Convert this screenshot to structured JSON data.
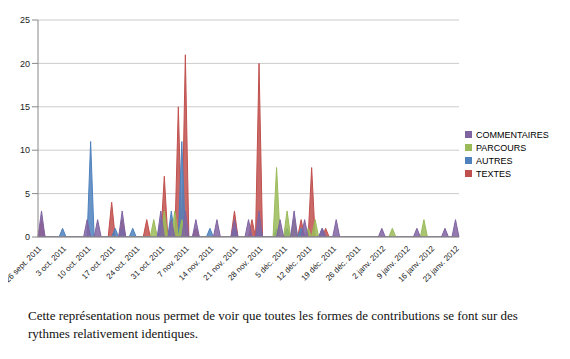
{
  "chart_data": {
    "type": "area",
    "categories": [
      "26 sept. 2011",
      null,
      null,
      null,
      null,
      null,
      null,
      "3 oct. 2011",
      null,
      null,
      null,
      null,
      null,
      null,
      "10 oct. 2011",
      null,
      null,
      null,
      null,
      null,
      null,
      "17 oct. 2011",
      null,
      null,
      null,
      null,
      null,
      null,
      "24 oct. 2011",
      null,
      null,
      null,
      null,
      null,
      null,
      "31 oct. 2011",
      null,
      null,
      null,
      null,
      null,
      null,
      "7 nov. 2011",
      null,
      null,
      null,
      null,
      null,
      null,
      "14 nov. 2011",
      null,
      null,
      null,
      null,
      null,
      null,
      "21 nov. 2011",
      null,
      null,
      null,
      null,
      null,
      null,
      "28 nov. 2011",
      null,
      null,
      null,
      null,
      null,
      null,
      "5 déc. 2011",
      null,
      null,
      null,
      null,
      null,
      null,
      "12 déc. 2011",
      null,
      null,
      null,
      null,
      null,
      null,
      "19 déc. 2011",
      null,
      null,
      null,
      null,
      null,
      null,
      "26 déc. 2011",
      null,
      null,
      null,
      null,
      null,
      null,
      "2 janv. 2012",
      null,
      null,
      null,
      null,
      null,
      null,
      "9 janv. 2012",
      null,
      null,
      null,
      null,
      null,
      null,
      "16 janv. 2012",
      null,
      null,
      null,
      null,
      null,
      null,
      "23 janv. 2012",
      null
    ],
    "series": [
      {
        "name": "COMMENTAIRES",
        "color": "#8064a2",
        "values": [
          0,
          3,
          0,
          0,
          0,
          0,
          0,
          0,
          0,
          0,
          0,
          0,
          0,
          0,
          2,
          0,
          0,
          2,
          0,
          0,
          0,
          0,
          0,
          0,
          3,
          0,
          0,
          0,
          0,
          0,
          0,
          0,
          0,
          0,
          0,
          3,
          0,
          0,
          2,
          0,
          0,
          0,
          3,
          0,
          0,
          2,
          0,
          0,
          0,
          0,
          0,
          2,
          0,
          0,
          0,
          0,
          2,
          0,
          0,
          0,
          2,
          0,
          0,
          3,
          0,
          0,
          0,
          0,
          0,
          2,
          0,
          0,
          0,
          3,
          0,
          0,
          2,
          0,
          0,
          0,
          0,
          1,
          0,
          0,
          0,
          2,
          0,
          0,
          0,
          0,
          0,
          0,
          0,
          0,
          0,
          0,
          0,
          0,
          1,
          0,
          0,
          0,
          0,
          0,
          0,
          0,
          0,
          0,
          1,
          0,
          0,
          0,
          0,
          0,
          0,
          0,
          1,
          0,
          0,
          2,
          0
        ]
      },
      {
        "name": "PARCOURS",
        "color": "#9bbb59",
        "values": [
          0,
          0,
          0,
          0,
          0,
          0,
          0,
          0,
          0,
          0,
          0,
          0,
          0,
          0,
          0,
          0,
          0,
          0,
          0,
          0,
          0,
          0,
          0,
          0,
          0,
          0,
          0,
          0,
          0,
          0,
          0,
          0,
          0,
          2,
          0,
          0,
          3,
          0,
          0,
          3,
          0,
          2,
          0,
          0,
          0,
          0,
          0,
          0,
          0,
          0,
          0,
          0,
          0,
          0,
          0,
          0,
          0,
          0,
          0,
          0,
          0,
          0,
          0,
          0,
          0,
          0,
          0,
          0,
          8,
          0,
          0,
          3,
          0,
          2,
          0,
          0,
          0,
          1,
          0,
          2,
          0,
          0,
          0,
          0,
          0,
          0,
          0,
          0,
          0,
          0,
          0,
          0,
          0,
          0,
          0,
          0,
          0,
          0,
          0,
          0,
          0,
          1,
          0,
          0,
          0,
          0,
          0,
          0,
          0,
          0,
          2,
          0,
          0,
          0,
          0,
          0,
          0,
          0,
          0,
          0,
          0
        ]
      },
      {
        "name": "AUTRES",
        "color": "#4f81bd",
        "values": [
          0,
          0,
          0,
          0,
          0,
          0,
          0,
          1,
          0,
          0,
          0,
          0,
          0,
          0,
          0,
          11,
          0,
          0,
          0,
          0,
          0,
          0,
          1,
          0,
          1,
          0,
          0,
          1,
          0,
          0,
          0,
          0,
          0,
          0,
          0,
          2,
          0,
          0,
          3,
          0,
          0,
          11,
          0,
          0,
          0,
          0,
          0,
          0,
          0,
          1,
          0,
          0,
          0,
          0,
          0,
          0,
          1,
          0,
          0,
          0,
          0,
          0,
          0,
          1,
          0,
          0,
          0,
          0,
          1,
          0,
          0,
          1,
          0,
          0,
          0,
          1,
          0,
          0,
          0,
          0,
          0,
          1,
          0,
          0,
          0,
          0,
          0,
          0,
          0,
          0,
          0,
          0,
          0,
          0,
          0,
          0,
          0,
          0,
          0,
          0,
          0,
          0,
          0,
          0,
          0,
          0,
          0,
          0,
          0,
          0,
          0,
          0,
          0,
          0,
          0,
          0,
          0,
          0,
          0,
          0,
          0
        ]
      },
      {
        "name": "TEXTES",
        "color": "#c0504d",
        "values": [
          0,
          2,
          0,
          0,
          0,
          0,
          0,
          0,
          0,
          0,
          0,
          0,
          0,
          0,
          0,
          0,
          0,
          0,
          0,
          0,
          0,
          4,
          0,
          0,
          2,
          0,
          0,
          0,
          0,
          0,
          0,
          2,
          0,
          0,
          0,
          0,
          7,
          0,
          0,
          0,
          15,
          0,
          21,
          0,
          0,
          1,
          0,
          0,
          0,
          0,
          0,
          0,
          0,
          0,
          0,
          0,
          3,
          0,
          0,
          0,
          0,
          2,
          0,
          20,
          0,
          0,
          0,
          0,
          0,
          0,
          0,
          0,
          0,
          0,
          0,
          2,
          0,
          0,
          8,
          0,
          0,
          0,
          1,
          0,
          0,
          0,
          0,
          0,
          0,
          0,
          0,
          0,
          0,
          0,
          0,
          0,
          0,
          0,
          0,
          0,
          0,
          0,
          0,
          0,
          0,
          0,
          0,
          0,
          0,
          0,
          0,
          0,
          0,
          0,
          0,
          0,
          0,
          0,
          0,
          0,
          0
        ]
      }
    ],
    "ylim": [
      0,
      25
    ],
    "yticks": [
      0,
      5,
      10,
      15,
      20,
      25
    ],
    "grid": true,
    "legend": "right"
  },
  "caption": "Cette représentation nous permet de voir que toutes les formes de contributions se font sur des rythmes relativement identiques."
}
